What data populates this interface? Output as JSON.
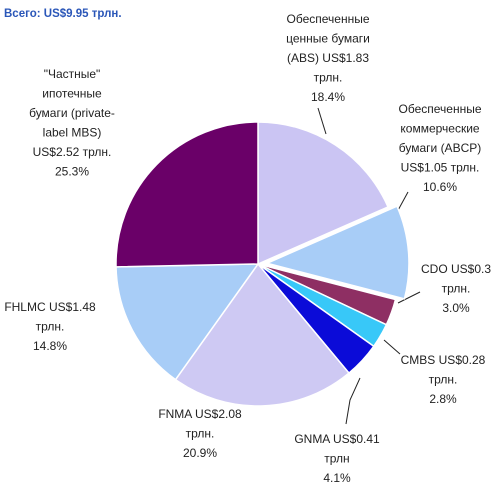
{
  "chart_data": {
    "type": "pie",
    "title": "Всего: US$9.95 трлн.",
    "labels": [
      [
        "Обеспеченные",
        "ценные бумаги",
        "(ABS) US$1.83",
        "трлн."
      ],
      [
        "Обеспеченные",
        "коммерческие",
        "бумаги (ABCP)",
        "US$1.05 трлн."
      ],
      [
        "CDO US$0.3",
        "трлн."
      ],
      [
        "CMBS US$0.28",
        "трлн."
      ],
      [
        "GNMA US$0.41",
        "трлн"
      ],
      [
        "FNMA US$2.08",
        "трлн."
      ],
      [
        "FHLMC US$1.48",
        "трлн."
      ],
      [
        "\"Частные\"",
        "ипотечные",
        "бумаги (private-",
        "label MBS)",
        "US$2.52 трлн."
      ]
    ],
    "values": [
      18.4,
      10.6,
      3.0,
      2.8,
      4.1,
      20.9,
      14.8,
      25.3
    ],
    "value_labels": [
      "18.4%",
      "10.6%",
      "3.0%",
      "2.8%",
      "4.1%",
      "20.9%",
      "14.8%",
      "25.3%"
    ],
    "colors": [
      "#cbc5f3",
      "#a8cdf7",
      "#8e2f63",
      "#38c8f8",
      "#0b0bd8",
      "#cec9f3",
      "#a8cdf7",
      "#6a0068"
    ],
    "exploded": [
      false,
      true,
      false,
      false,
      false,
      false,
      false,
      false
    ]
  }
}
